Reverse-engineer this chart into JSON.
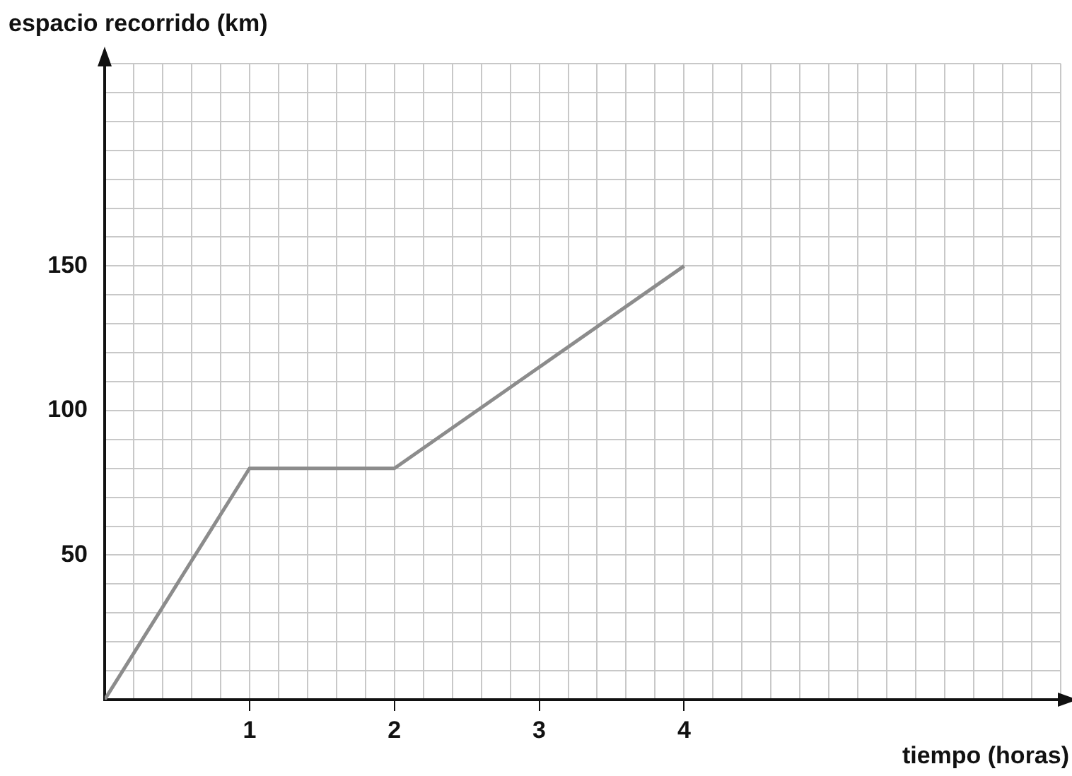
{
  "chart_data": {
    "type": "line",
    "xlabel": "tiempo (horas)",
    "ylabel": "espacio recorrido (km)",
    "x": [
      0,
      1,
      2,
      4
    ],
    "series": [
      {
        "color": "#8c8c8c",
        "values": [
          0,
          80,
          80,
          150
        ]
      }
    ],
    "xlim": [
      0,
      6.6
    ],
    "xticks": [
      {
        "value": 0,
        "label": null
      },
      {
        "value": 0.2,
        "label": null
      },
      {
        "value": 0.4,
        "label": null
      },
      {
        "value": 0.6,
        "label": null
      },
      {
        "value": 0.8,
        "label": null
      },
      1,
      {
        "value": 1.2,
        "label": null
      },
      {
        "value": 1.4,
        "label": null
      },
      {
        "value": 1.6,
        "label": null
      },
      {
        "value": 1.8,
        "label": null
      },
      2,
      {
        "value": 2.2,
        "label": null
      },
      {
        "value": 2.4,
        "label": null
      },
      {
        "value": 2.6,
        "label": null
      },
      {
        "value": 2.8,
        "label": null
      },
      3,
      {
        "value": 3.2,
        "label": null
      },
      {
        "value": 3.4,
        "label": null
      },
      {
        "value": 3.6,
        "label": null
      },
      {
        "value": 3.8,
        "label": null
      },
      4,
      {
        "value": 4.2,
        "label": null
      },
      {
        "value": 4.4,
        "label": null
      },
      {
        "value": 4.6,
        "label": null
      },
      {
        "value": 4.8,
        "label": null
      },
      {
        "value": 5,
        "label": null
      },
      {
        "value": 5.2,
        "label": null
      },
      {
        "value": 5.4,
        "label": null
      },
      {
        "value": 5.6,
        "label": null
      },
      {
        "value": 5.8,
        "label": null
      },
      {
        "value": 6,
        "label": null
      },
      {
        "value": 6.2,
        "label": null
      },
      {
        "value": 6.4,
        "label": null
      },
      {
        "value": 6.6,
        "label": null
      }
    ],
    "ylim": [
      0,
      220
    ],
    "yticks": [
      {
        "value": 0,
        "label": null
      },
      {
        "value": 10,
        "label": null
      },
      {
        "value": 20,
        "label": null
      },
      {
        "value": 30,
        "label": null
      },
      {
        "value": 40,
        "label": null
      },
      50,
      {
        "value": 60,
        "label": null
      },
      {
        "value": 70,
        "label": null
      },
      {
        "value": 80,
        "label": null
      },
      {
        "value": 90,
        "label": null
      },
      100,
      {
        "value": 110,
        "label": null
      },
      {
        "value": 120,
        "label": null
      },
      {
        "value": 130,
        "label": null
      },
      {
        "value": 140,
        "label": null
      },
      150,
      {
        "value": 160,
        "label": null
      },
      {
        "value": 170,
        "label": null
      },
      {
        "value": 180,
        "label": null
      },
      {
        "value": 190,
        "label": null
      },
      {
        "value": 200,
        "label": null
      },
      {
        "value": 210,
        "label": null
      },
      {
        "value": 220,
        "label": null
      }
    ],
    "grid": true,
    "marker": "none",
    "line_style": "solid",
    "legend": false
  }
}
